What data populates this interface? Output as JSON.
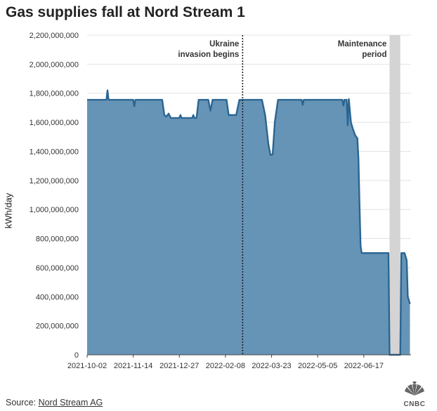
{
  "title": "Gas supplies fall at Nord Stream 1",
  "source": {
    "prefix": "Source: ",
    "name": "Nord Stream AG"
  },
  "logo": {
    "name": "CNBC"
  },
  "colors": {
    "area_fill": "#6694b6",
    "line": "#2b6591",
    "grid": "#e3e3e3",
    "maintenance": "#d4d4d4"
  },
  "chart_data": {
    "type": "area",
    "title": "Gas supplies fall at Nord Stream 1",
    "xlabel": "",
    "ylabel": "kWh/day",
    "ylim": [
      0,
      2200000000
    ],
    "xlim": [
      "2021-10-02",
      "2022-07-31"
    ],
    "grid": true,
    "y_ticks": [
      0,
      200000000,
      400000000,
      600000000,
      800000000,
      1000000000,
      1200000000,
      1400000000,
      1600000000,
      1800000000,
      2000000000,
      2200000000
    ],
    "y_tick_labels": [
      "0",
      "200,000,000",
      "400,000,000",
      "600,000,000",
      "800,000,000",
      "1,000,000,000",
      "1,200,000,000",
      "1,400,000,000",
      "1,600,000,000",
      "1,800,000,000",
      "2,000,000,000",
      "2,200,000,000"
    ],
    "x_ticks": [
      "2021-10-02",
      "2021-11-14",
      "2021-12-27",
      "2022-02-08",
      "2022-03-23",
      "2022-05-05",
      "2022-06-17"
    ],
    "annotations": [
      {
        "type": "line",
        "x": "2022-02-24",
        "text": [
          "Ukraine",
          "invasion begins"
        ]
      },
      {
        "type": "band",
        "x": [
          "2022-07-11",
          "2022-07-21"
        ],
        "text": [
          "Maintenance",
          "period"
        ]
      }
    ],
    "series": [
      {
        "points": [
          [
            "2021-10-02",
            1755000000
          ],
          [
            "2021-10-20",
            1755000000
          ],
          [
            "2021-10-21",
            1820000000
          ],
          [
            "2021-10-22",
            1755000000
          ],
          [
            "2021-11-14",
            1755000000
          ],
          [
            "2021-11-15",
            1710000000
          ],
          [
            "2021-11-16",
            1755000000
          ],
          [
            "2021-12-11",
            1755000000
          ],
          [
            "2021-12-13",
            1650000000
          ],
          [
            "2021-12-15",
            1640000000
          ],
          [
            "2021-12-17",
            1660000000
          ],
          [
            "2021-12-19",
            1630000000
          ],
          [
            "2021-12-27",
            1630000000
          ],
          [
            "2021-12-28",
            1650000000
          ],
          [
            "2021-12-29",
            1630000000
          ],
          [
            "2022-01-08",
            1630000000
          ],
          [
            "2022-01-09",
            1650000000
          ],
          [
            "2022-01-10",
            1630000000
          ],
          [
            "2022-01-12",
            1630000000
          ],
          [
            "2022-01-14",
            1755000000
          ],
          [
            "2022-01-23",
            1755000000
          ],
          [
            "2022-01-25",
            1680000000
          ],
          [
            "2022-01-27",
            1755000000
          ],
          [
            "2022-02-09",
            1755000000
          ],
          [
            "2022-02-11",
            1650000000
          ],
          [
            "2022-02-18",
            1650000000
          ],
          [
            "2022-02-21",
            1755000000
          ],
          [
            "2022-03-14",
            1755000000
          ],
          [
            "2022-03-17",
            1650000000
          ],
          [
            "2022-03-20",
            1450000000
          ],
          [
            "2022-03-22",
            1375000000
          ],
          [
            "2022-03-24",
            1380000000
          ],
          [
            "2022-03-26",
            1600000000
          ],
          [
            "2022-03-29",
            1755000000
          ],
          [
            "2022-04-20",
            1755000000
          ],
          [
            "2022-04-21",
            1720000000
          ],
          [
            "2022-04-22",
            1755000000
          ],
          [
            "2022-05-28",
            1755000000
          ],
          [
            "2022-05-29",
            1715000000
          ],
          [
            "2022-05-30",
            1755000000
          ],
          [
            "2022-06-01",
            1755000000
          ],
          [
            "2022-06-02",
            1580000000
          ],
          [
            "2022-06-03",
            1760000000
          ],
          [
            "2022-06-05",
            1600000000
          ],
          [
            "2022-06-07",
            1550000000
          ],
          [
            "2022-06-09",
            1510000000
          ],
          [
            "2022-06-11",
            1490000000
          ],
          [
            "2022-06-12",
            1350000000
          ],
          [
            "2022-06-13",
            1030000000
          ],
          [
            "2022-06-14",
            750000000
          ],
          [
            "2022-06-15",
            700000000
          ],
          [
            "2022-07-10",
            700000000
          ],
          [
            "2022-07-11",
            0
          ],
          [
            "2022-07-21",
            0
          ],
          [
            "2022-07-22",
            700000000
          ],
          [
            "2022-07-25",
            700000000
          ],
          [
            "2022-07-27",
            650000000
          ],
          [
            "2022-07-28",
            400000000
          ],
          [
            "2022-07-30",
            350000000
          ]
        ]
      }
    ]
  }
}
